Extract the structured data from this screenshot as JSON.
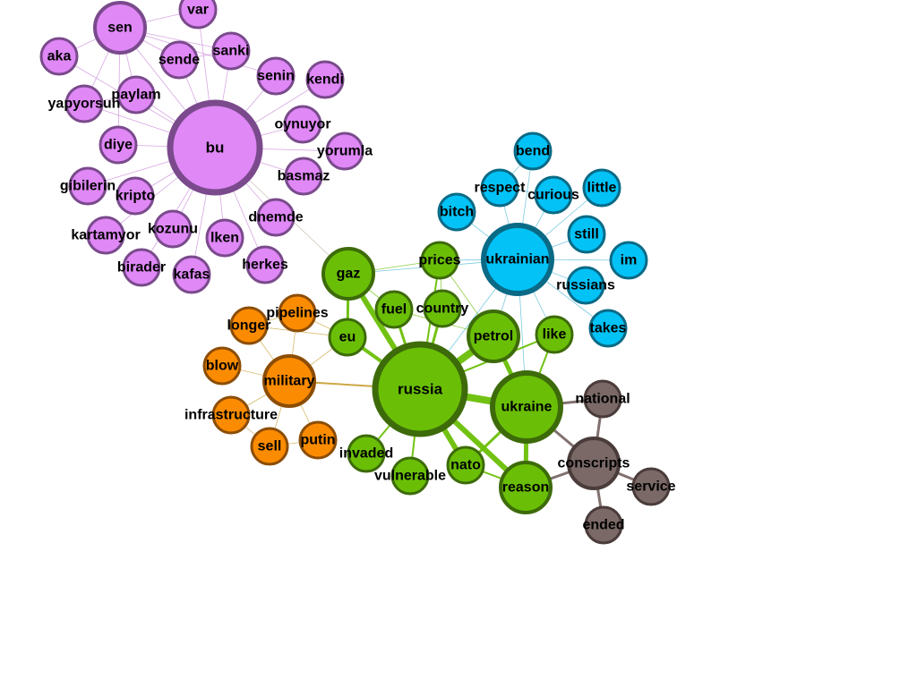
{
  "colors": {
    "purple": {
      "fill": "#df88f6",
      "stroke": "#7a4a8c",
      "edge": "#c98ad8"
    },
    "blue": {
      "fill": "#03c2f6",
      "stroke": "#0a6a86",
      "edge": "#4fb8d6"
    },
    "green": {
      "fill": "#6abf06",
      "stroke": "#3d6b0a",
      "edge": "#6abf06"
    },
    "orange": {
      "fill": "#fb8b00",
      "stroke": "#8c4d05",
      "edge": "#c9a23a"
    },
    "brown": {
      "fill": "#7a6966",
      "stroke": "#4a3c3a",
      "edge": "#7a6966"
    }
  },
  "nodes": [
    {
      "id": "bu",
      "label": "bu",
      "group": "purple",
      "size": "xl"
    },
    {
      "id": "sen",
      "label": "sen",
      "group": "purple",
      "size": "m"
    },
    {
      "id": "var",
      "label": "var",
      "group": "purple",
      "size": "s"
    },
    {
      "id": "aka",
      "label": "aka",
      "group": "purple",
      "size": "s"
    },
    {
      "id": "sende",
      "label": "sende",
      "group": "purple",
      "size": "s"
    },
    {
      "id": "sanki",
      "label": "sanki",
      "group": "purple",
      "size": "s"
    },
    {
      "id": "senin",
      "label": "senin",
      "group": "purple",
      "size": "s"
    },
    {
      "id": "kendi",
      "label": "kendi",
      "group": "purple",
      "size": "s"
    },
    {
      "id": "paylam",
      "label": "paylam",
      "group": "purple",
      "size": "s"
    },
    {
      "id": "yapyorsun",
      "label": "yapyorsun",
      "group": "purple",
      "size": "s"
    },
    {
      "id": "oynuyor",
      "label": "oynuyor",
      "group": "purple",
      "size": "s"
    },
    {
      "id": "yorumla",
      "label": "yorumla",
      "group": "purple",
      "size": "s"
    },
    {
      "id": "diye",
      "label": "diye",
      "group": "purple",
      "size": "s"
    },
    {
      "id": "basmaz",
      "label": "basmaz",
      "group": "purple",
      "size": "s"
    },
    {
      "id": "gibilerin",
      "label": "gibilerin",
      "group": "purple",
      "size": "s"
    },
    {
      "id": "kripto",
      "label": "kripto",
      "group": "purple",
      "size": "s"
    },
    {
      "id": "dnemde",
      "label": "dnemde",
      "group": "purple",
      "size": "s"
    },
    {
      "id": "kartamyor",
      "label": "kartamyor",
      "group": "purple",
      "size": "s"
    },
    {
      "id": "kozunu",
      "label": "kozunu",
      "group": "purple",
      "size": "s"
    },
    {
      "id": "lken",
      "label": "lken",
      "group": "purple",
      "size": "s"
    },
    {
      "id": "herkes",
      "label": "herkes",
      "group": "purple",
      "size": "s"
    },
    {
      "id": "birader",
      "label": "birader",
      "group": "purple",
      "size": "s"
    },
    {
      "id": "kafas",
      "label": "kafas",
      "group": "purple",
      "size": "s"
    },
    {
      "id": "ukrainian",
      "label": "ukrainian",
      "group": "blue",
      "size": "l"
    },
    {
      "id": "bend",
      "label": "bend",
      "group": "blue",
      "size": "s"
    },
    {
      "id": "respect",
      "label": "respect",
      "group": "blue",
      "size": "s"
    },
    {
      "id": "curious",
      "label": "curious",
      "group": "blue",
      "size": "s"
    },
    {
      "id": "little",
      "label": "little",
      "group": "blue",
      "size": "s"
    },
    {
      "id": "bitch",
      "label": "bitch",
      "group": "blue",
      "size": "s"
    },
    {
      "id": "still",
      "label": "still",
      "group": "blue",
      "size": "s"
    },
    {
      "id": "im",
      "label": "im",
      "group": "blue",
      "size": "s"
    },
    {
      "id": "russians",
      "label": "russians",
      "group": "blue",
      "size": "s"
    },
    {
      "id": "takes",
      "label": "takes",
      "group": "blue",
      "size": "s"
    },
    {
      "id": "russia",
      "label": "russia",
      "group": "green",
      "size": "xl"
    },
    {
      "id": "ukraine",
      "label": "ukraine",
      "group": "green",
      "size": "l"
    },
    {
      "id": "gaz",
      "label": "gaz",
      "group": "green",
      "size": "m"
    },
    {
      "id": "prices",
      "label": "prices",
      "group": "green",
      "size": "s"
    },
    {
      "id": "fuel",
      "label": "fuel",
      "group": "green",
      "size": "s"
    },
    {
      "id": "country",
      "label": "country",
      "group": "green",
      "size": "s"
    },
    {
      "id": "eu",
      "label": "eu",
      "group": "green",
      "size": "s"
    },
    {
      "id": "petrol",
      "label": "petrol",
      "group": "green",
      "size": "m"
    },
    {
      "id": "like",
      "label": "like",
      "group": "green",
      "size": "s"
    },
    {
      "id": "invaded",
      "label": "invaded",
      "group": "green",
      "size": "s"
    },
    {
      "id": "vulnerable",
      "label": "vulnerable",
      "group": "green",
      "size": "s"
    },
    {
      "id": "nato",
      "label": "nato",
      "group": "green",
      "size": "s"
    },
    {
      "id": "reason",
      "label": "reason",
      "group": "green",
      "size": "m"
    },
    {
      "id": "military",
      "label": "military",
      "group": "orange",
      "size": "m"
    },
    {
      "id": "pipelines",
      "label": "pipelines",
      "group": "orange",
      "size": "s"
    },
    {
      "id": "longer",
      "label": "longer",
      "group": "orange",
      "size": "s"
    },
    {
      "id": "blow",
      "label": "blow",
      "group": "orange",
      "size": "s"
    },
    {
      "id": "infrastructure",
      "label": "infrastructure",
      "group": "orange",
      "size": "s"
    },
    {
      "id": "sell",
      "label": "sell",
      "group": "orange",
      "size": "s"
    },
    {
      "id": "putin",
      "label": "putin",
      "group": "orange",
      "size": "s"
    },
    {
      "id": "national",
      "label": "national",
      "group": "brown",
      "size": "s"
    },
    {
      "id": "conscripts",
      "label": "conscripts",
      "group": "brown",
      "size": "m"
    },
    {
      "id": "service",
      "label": "service",
      "group": "brown",
      "size": "s"
    },
    {
      "id": "ended",
      "label": "ended",
      "group": "brown",
      "size": "s"
    }
  ],
  "edges": [
    [
      "bu",
      "sen",
      1
    ],
    [
      "bu",
      "var",
      1
    ],
    [
      "bu",
      "aka",
      1
    ],
    [
      "bu",
      "sende",
      1
    ],
    [
      "bu",
      "sanki",
      1
    ],
    [
      "bu",
      "senin",
      1
    ],
    [
      "bu",
      "kendi",
      1
    ],
    [
      "bu",
      "paylam",
      1
    ],
    [
      "bu",
      "yapyorsun",
      1
    ],
    [
      "bu",
      "oynuyor",
      1
    ],
    [
      "bu",
      "yorumla",
      1
    ],
    [
      "bu",
      "diye",
      1
    ],
    [
      "bu",
      "basmaz",
      1
    ],
    [
      "bu",
      "gibilerin",
      1
    ],
    [
      "bu",
      "kripto",
      1
    ],
    [
      "bu",
      "dnemde",
      1
    ],
    [
      "bu",
      "kartamyor",
      1
    ],
    [
      "bu",
      "kozunu",
      1
    ],
    [
      "bu",
      "lken",
      1
    ],
    [
      "bu",
      "herkes",
      1
    ],
    [
      "bu",
      "birader",
      1
    ],
    [
      "bu",
      "kafas",
      1
    ],
    [
      "sen",
      "var",
      1
    ],
    [
      "sen",
      "aka",
      1
    ],
    [
      "sen",
      "sende",
      1
    ],
    [
      "sen",
      "sanki",
      1
    ],
    [
      "sen",
      "paylam",
      1
    ],
    [
      "sen",
      "yapyorsun",
      1
    ],
    [
      "sen",
      "senin",
      1
    ],
    [
      "sen",
      "diye",
      1
    ],
    [
      "paylam",
      "yapyorsun",
      1
    ],
    [
      "sende",
      "sanki",
      1
    ],
    [
      "bu",
      "gaz",
      1
    ],
    [
      "ukrainian",
      "bend",
      1
    ],
    [
      "ukrainian",
      "respect",
      1
    ],
    [
      "ukrainian",
      "curious",
      1
    ],
    [
      "ukrainian",
      "little",
      1
    ],
    [
      "ukrainian",
      "bitch",
      1
    ],
    [
      "ukrainian",
      "still",
      1
    ],
    [
      "ukrainian",
      "im",
      1
    ],
    [
      "ukrainian",
      "russians",
      1
    ],
    [
      "ukrainian",
      "takes",
      1
    ],
    [
      "respect",
      "curious",
      1
    ],
    [
      "bend",
      "respect",
      1
    ],
    [
      "ukrainian",
      "prices",
      1
    ],
    [
      "ukrainian",
      "gaz",
      1
    ],
    [
      "ukrainian",
      "petrol",
      1
    ],
    [
      "ukrainian",
      "russia",
      1
    ],
    [
      "ukrainian",
      "ukraine",
      1
    ],
    [
      "ukrainian",
      "like",
      1
    ],
    [
      "russia",
      "gaz",
      6
    ],
    [
      "russia",
      "eu",
      4
    ],
    [
      "russia",
      "fuel",
      3
    ],
    [
      "russia",
      "country",
      3
    ],
    [
      "russia",
      "petrol",
      8
    ],
    [
      "russia",
      "prices",
      2
    ],
    [
      "russia",
      "ukraine",
      8
    ],
    [
      "russia",
      "nato",
      6
    ],
    [
      "russia",
      "reason",
      6
    ],
    [
      "russia",
      "invaded",
      2
    ],
    [
      "russia",
      "vulnerable",
      2
    ],
    [
      "russia",
      "like",
      2
    ],
    [
      "russia",
      "military",
      2
    ],
    [
      "gaz",
      "eu",
      3
    ],
    [
      "gaz",
      "prices",
      1
    ],
    [
      "gaz",
      "fuel",
      1
    ],
    [
      "prices",
      "petrol",
      1
    ],
    [
      "prices",
      "country",
      1
    ],
    [
      "petrol",
      "ukraine",
      5
    ],
    [
      "ukraine",
      "like",
      2
    ],
    [
      "ukraine",
      "nato",
      3
    ],
    [
      "ukraine",
      "reason",
      5
    ],
    [
      "nato",
      "reason",
      2
    ],
    [
      "petrol",
      "fuel",
      1
    ],
    [
      "military",
      "pipelines",
      1
    ],
    [
      "military",
      "longer",
      1
    ],
    [
      "military",
      "blow",
      1
    ],
    [
      "military",
      "infrastructure",
      1
    ],
    [
      "military",
      "sell",
      1
    ],
    [
      "military",
      "putin",
      1
    ],
    [
      "military",
      "eu",
      1
    ],
    [
      "pipelines",
      "longer",
      1
    ],
    [
      "pipelines",
      "eu",
      1
    ],
    [
      "longer",
      "eu",
      1
    ],
    [
      "infrastructure",
      "sell",
      1
    ],
    [
      "putin",
      "sell",
      1
    ],
    [
      "ukraine",
      "national",
      3
    ],
    [
      "ukraine",
      "conscripts",
      3
    ],
    [
      "reason",
      "conscripts",
      3
    ],
    [
      "conscripts",
      "national",
      3
    ],
    [
      "conscripts",
      "service",
      3
    ],
    [
      "conscripts",
      "ended",
      3
    ]
  ]
}
